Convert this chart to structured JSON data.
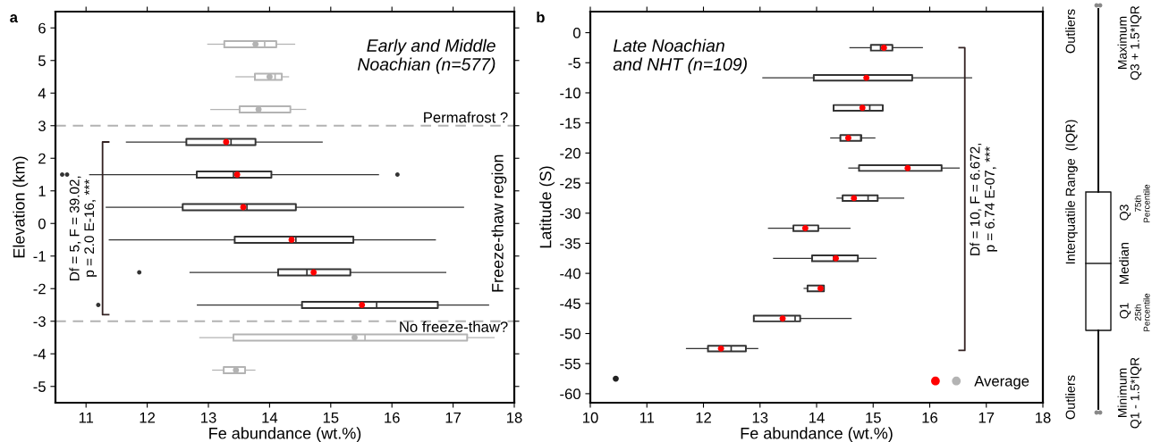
{
  "chart_data": [
    {
      "type": "box",
      "orientation": "horizontal",
      "xlabel": "Fe abundance (wt.%)",
      "ylabel": "Elevation (km)",
      "xlim": [
        10.5,
        18
      ],
      "xticks": [
        11,
        12,
        13,
        14,
        15,
        16,
        17,
        18
      ],
      "ylim": [
        -5.5,
        6.5
      ],
      "yticks": [
        -5,
        -4,
        -3,
        -2,
        -1,
        0,
        1,
        2,
        3,
        4,
        5,
        6
      ],
      "grid": false,
      "annotations": [
        "a",
        "Early and Middle\nNoachian (n=577)",
        "Freeze-thaw region",
        "Df = 5, F = 39.02,\np = 2.0 E-16, ***"
      ],
      "ref_lines": [
        {
          "axis": "y",
          "value": 3,
          "label": "Permafrost ?",
          "color": "#b3b3b3",
          "line_style": "dashed"
        },
        {
          "axis": "y",
          "value": -3,
          "label": "No freeze-thaw?",
          "color": "#b3b3b3",
          "line_style": "dashed"
        }
      ],
      "series": [
        {
          "color": "#b3b3b3",
          "x": [
            5.5,
            4.5,
            3.5,
            -3.5,
            -4.5
          ],
          "boxes": [
            {
              "low": 12.99,
              "q1": 13.26,
              "median": 13.92,
              "q3": 14.11,
              "high": 14.41,
              "mean": 13.77
            },
            {
              "low": 13.45,
              "q1": 13.76,
              "median": 14.09,
              "q3": 14.2,
              "high": 14.31,
              "mean": 14.0
            },
            {
              "low": 13.04,
              "q1": 13.51,
              "median": 13.82,
              "q3": 14.34,
              "high": 14.59,
              "mean": 13.82
            },
            {
              "low": 12.86,
              "q1": 13.41,
              "median": 15.56,
              "q3": 17.23,
              "high": 17.67,
              "mean": 15.39
            },
            {
              "low": 13.07,
              "q1": 13.25,
              "median": 13.45,
              "q3": 13.6,
              "high": 13.76,
              "mean": 13.45
            }
          ]
        },
        {
          "color": "#333333",
          "x": [
            2.5,
            1.5,
            0.5,
            -0.5,
            -1.5,
            -2.5
          ],
          "boxes": [
            {
              "low": 11.66,
              "q1": 12.64,
              "median": 13.37,
              "q3": 13.77,
              "high": 14.86,
              "mean": 13.29
            },
            {
              "low": 11.06,
              "q1": 12.81,
              "median": 13.41,
              "q3": 14.03,
              "high": 15.78,
              "mean": 13.47,
              "outliers": [
                10.61,
                10.69,
                16.09
              ]
            },
            {
              "low": 11.33,
              "q1": 12.58,
              "median": 13.63,
              "q3": 14.43,
              "high": 17.17,
              "mean": 13.57
            },
            {
              "low": 11.38,
              "q1": 13.43,
              "median": 14.43,
              "q3": 15.37,
              "high": 16.71,
              "mean": 14.36
            },
            {
              "low": 12.7,
              "q1": 14.14,
              "median": 14.61,
              "q3": 15.32,
              "high": 16.88,
              "mean": 14.72,
              "outliers": [
                11.87
              ]
            },
            {
              "low": 12.82,
              "q1": 14.53,
              "median": 15.75,
              "q3": 16.75,
              "high": 17.58,
              "mean": 15.51,
              "outliers": [
                11.2
              ]
            }
          ]
        }
      ]
    },
    {
      "type": "box",
      "orientation": "horizontal",
      "xlabel": "Fe abundance (wt.%)",
      "ylabel": "Latitude (S)",
      "xlim": [
        10,
        18
      ],
      "xticks": [
        10,
        11,
        12,
        13,
        14,
        15,
        16,
        17,
        18
      ],
      "ylim": [
        -61.5,
        3.5
      ],
      "yticks": [
        -60,
        -55,
        -50,
        -45,
        -40,
        -35,
        -30,
        -25,
        -20,
        -15,
        -10,
        -5,
        0
      ],
      "grid": false,
      "legend": "bottom right",
      "annotations": [
        "b",
        "Late Noachian\nand NHT (n=109)",
        "Df = 10, F = 6.672,\np = 6.74 E-07, ***"
      ],
      "series": [
        {
          "name": "Average",
          "color": "#333333",
          "x": [
            -2.5,
            -7.5,
            -12.5,
            -17.5,
            -22.5,
            -27.5,
            -32.5,
            -37.5,
            -42.5,
            -47.5,
            -52.5
          ],
          "boxes": [
            {
              "low": 14.59,
              "q1": 14.96,
              "median": 15.13,
              "q3": 15.34,
              "high": 15.87,
              "mean": 15.19
            },
            {
              "low": 13.05,
              "q1": 13.95,
              "median": 14.87,
              "q3": 15.69,
              "high": 16.74,
              "mean": 14.88
            },
            {
              "low": 14.3,
              "q1": 14.3,
              "median": 14.94,
              "q3": 15.17,
              "high": 15.17,
              "mean": 14.81
            },
            {
              "low": 14.25,
              "q1": 14.42,
              "median": 14.78,
              "q3": 14.79,
              "high": 15.03,
              "mean": 14.56
            },
            {
              "low": 14.57,
              "q1": 14.75,
              "median": 15.61,
              "q3": 16.21,
              "high": 16.52,
              "mean": 15.61
            },
            {
              "low": 14.36,
              "q1": 14.46,
              "median": 14.91,
              "q3": 15.08,
              "high": 15.54,
              "mean": 14.66
            },
            {
              "low": 13.15,
              "q1": 13.59,
              "median": 13.8,
              "q3": 14.03,
              "high": 14.59,
              "mean": 13.8
            },
            {
              "low": 13.24,
              "q1": 13.92,
              "median": 14.3,
              "q3": 14.73,
              "high": 15.05,
              "mean": 14.34
            },
            {
              "low": 13.78,
              "q1": 13.84,
              "median": 14.07,
              "q3": 14.13,
              "high": 14.13,
              "mean": 14.07
            },
            {
              "low": 12.89,
              "q1": 12.89,
              "median": 13.62,
              "q3": 13.71,
              "high": 14.61,
              "mean": 13.4
            },
            {
              "low": 11.7,
              "q1": 12.08,
              "median": 12.49,
              "q3": 12.75,
              "high": 12.96,
              "mean": 12.31
            }
          ]
        },
        {
          "type": "scatter",
          "color": "#222222",
          "x": [
            -57.5
          ],
          "values": [
            10.45
          ]
        }
      ]
    },
    {
      "type": "other",
      "annotations": [
        "Outliers",
        "Interquatile Range  (IQR)",
        "Outliers",
        "Maximum\nQ3 + 1.5*IQR",
        "Q3",
        "75th\nPercentile",
        "Median",
        "Q1",
        "25th\nPercentile",
        "Minimum\nQ1 - 1.5*IQR"
      ]
    }
  ]
}
